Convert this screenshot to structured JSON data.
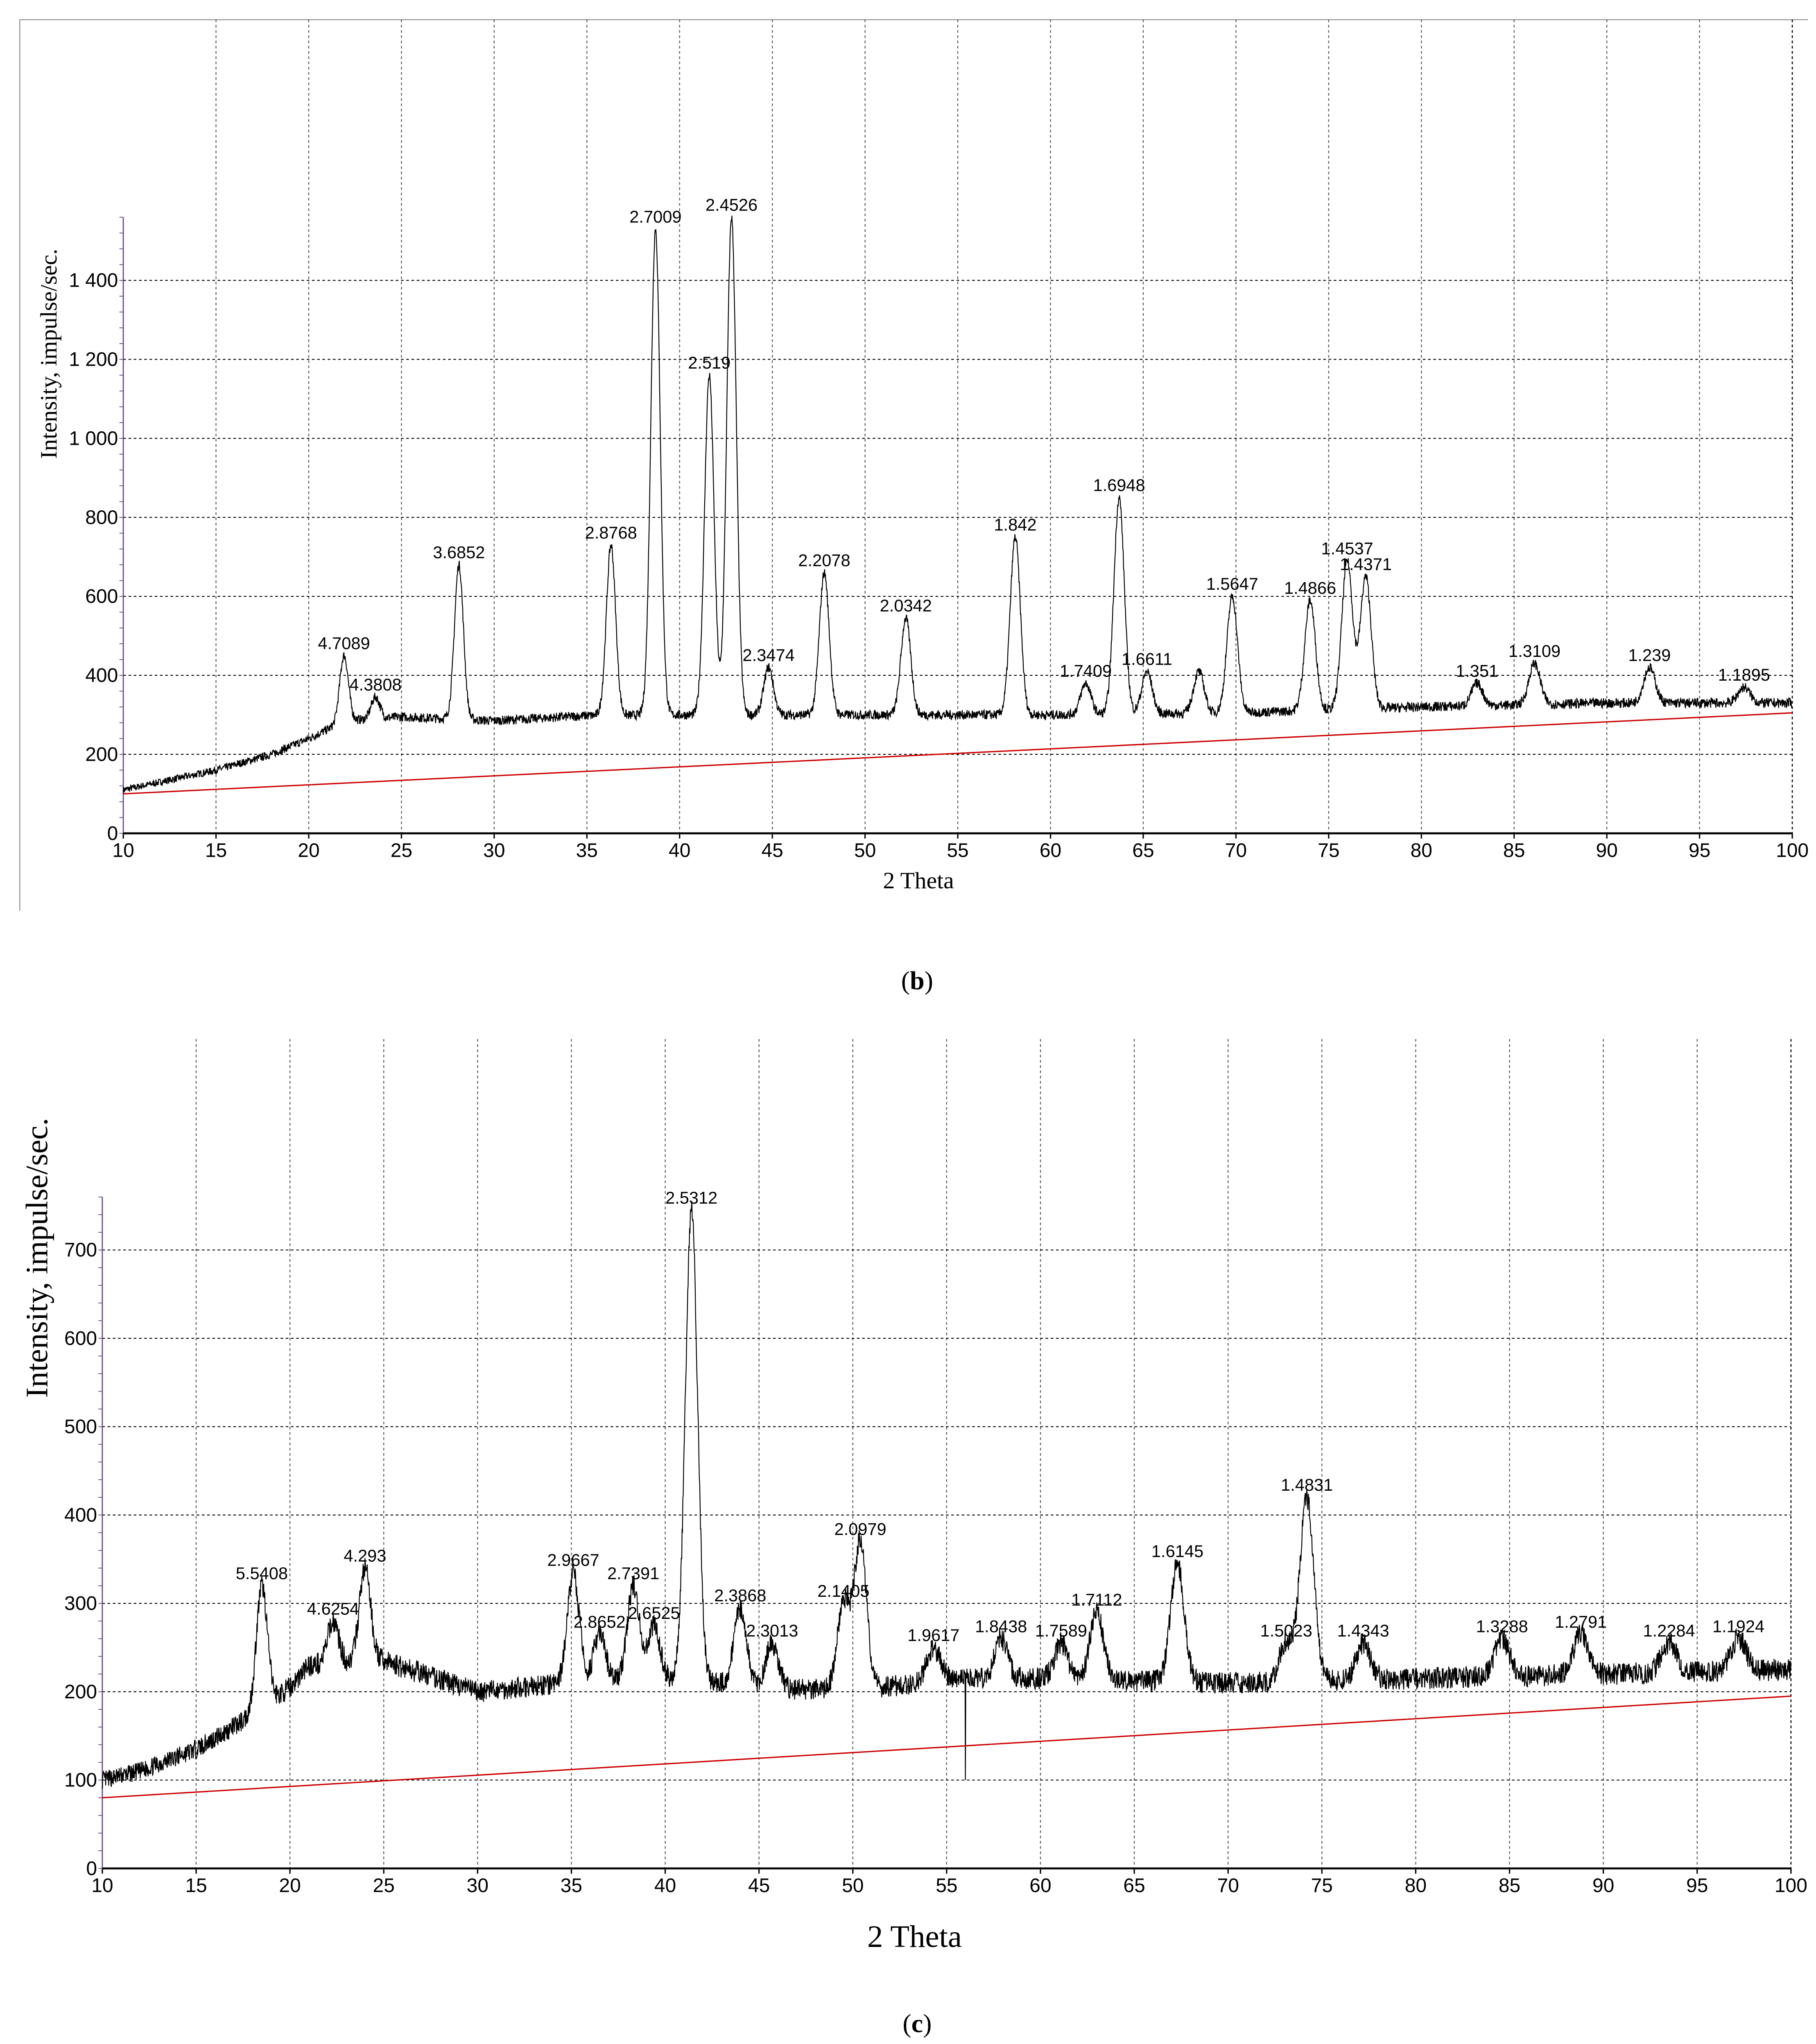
{
  "chart_data": [
    {
      "type": "line",
      "panel_caption": "(b)",
      "caption_letter": "b",
      "xlabel": "2 Theta",
      "ylabel": "Intensity, impulse/sec.",
      "xlim": [
        10,
        100
      ],
      "ylim": [
        0,
        1600
      ],
      "xticks": [
        "10",
        "15",
        "20",
        "25",
        "30",
        "35",
        "40",
        "45",
        "50",
        "55",
        "60",
        "65",
        "70",
        "75",
        "80",
        "85",
        "90",
        "95",
        "100"
      ],
      "yticks": [
        {
          "v": 0,
          "label": "0"
        },
        {
          "v": 200,
          "label": "200"
        },
        {
          "v": 400,
          "label": "400"
        },
        {
          "v": 600,
          "label": "600"
        },
        {
          "v": 800,
          "label": "800"
        },
        {
          "v": 1000,
          "label": "1 000"
        },
        {
          "v": 1200,
          "label": "1 200"
        },
        {
          "v": 1400,
          "label": "1 400"
        }
      ],
      "grid": true,
      "colors": {
        "trace": "#000000",
        "baseline": "#cc0000",
        "grid": "#555555"
      },
      "background_profile": [
        [
          10,
          110
        ],
        [
          13,
          140
        ],
        [
          15,
          160
        ],
        [
          18,
          200
        ],
        [
          20,
          240
        ],
        [
          22,
          285
        ],
        [
          25,
          295
        ],
        [
          30,
          285
        ],
        [
          35,
          298
        ],
        [
          40,
          300
        ],
        [
          50,
          300
        ],
        [
          60,
          300
        ],
        [
          70,
          305
        ],
        [
          80,
          320
        ],
        [
          90,
          330
        ],
        [
          100,
          330
        ]
      ],
      "baseline": [
        [
          10,
          100
        ],
        [
          100,
          305
        ]
      ],
      "peaks": [
        {
          "two_theta": 21.9,
          "intensity": 450,
          "label": "4.7089"
        },
        {
          "two_theta": 23.6,
          "intensity": 345,
          "label": "4.3808"
        },
        {
          "two_theta": 28.1,
          "intensity": 680,
          "label": "3.6852"
        },
        {
          "two_theta": 36.3,
          "intensity": 730,
          "label": "2.8768"
        },
        {
          "two_theta": 38.7,
          "intensity": 1530,
          "label": "2.7009"
        },
        {
          "two_theta": 41.6,
          "intensity": 1160,
          "label": "2.519"
        },
        {
          "two_theta": 42.8,
          "intensity": 1560,
          "label": "2.4526"
        },
        {
          "two_theta": 44.8,
          "intensity": 420,
          "label": "2.3474"
        },
        {
          "two_theta": 47.8,
          "intensity": 660,
          "label": "2.2078"
        },
        {
          "two_theta": 52.2,
          "intensity": 545,
          "label": "2.0342"
        },
        {
          "two_theta": 58.1,
          "intensity": 750,
          "label": "1.842"
        },
        {
          "two_theta": 61.9,
          "intensity": 380,
          "label": "1.7409"
        },
        {
          "two_theta": 63.7,
          "intensity": 850,
          "label": "1.6948"
        },
        {
          "two_theta": 65.2,
          "intensity": 410,
          "label": "1.6611"
        },
        {
          "two_theta": 68.0,
          "intensity": 410,
          "label": ""
        },
        {
          "two_theta": 69.8,
          "intensity": 600,
          "label": "1.5647"
        },
        {
          "two_theta": 74.0,
          "intensity": 590,
          "label": "1.4866"
        },
        {
          "two_theta": 76.0,
          "intensity": 690,
          "label": "1.4537"
        },
        {
          "two_theta": 77.0,
          "intensity": 650,
          "label": "1.4371"
        },
        {
          "two_theta": 83.0,
          "intensity": 380,
          "label": "1.351"
        },
        {
          "two_theta": 86.1,
          "intensity": 430,
          "label": "1.3109"
        },
        {
          "two_theta": 92.3,
          "intensity": 420,
          "label": "1.239"
        },
        {
          "two_theta": 97.4,
          "intensity": 370,
          "label": "1.1895"
        }
      ]
    },
    {
      "type": "line",
      "panel_caption": "(c)",
      "caption_letter": "c",
      "xlabel": "2 Theta",
      "ylabel": "Intensity, impulse/sec.",
      "xlim": [
        10,
        100
      ],
      "ylim": [
        0,
        800
      ],
      "xticks": [
        "10",
        "15",
        "20",
        "25",
        "30",
        "35",
        "40",
        "45",
        "50",
        "55",
        "60",
        "65",
        "70",
        "75",
        "80",
        "85",
        "90",
        "95",
        "100"
      ],
      "yticks": [
        {
          "v": 0,
          "label": "0"
        },
        {
          "v": 100,
          "label": "100"
        },
        {
          "v": 200,
          "label": "200"
        },
        {
          "v": 300,
          "label": "300"
        },
        {
          "v": 400,
          "label": "400"
        },
        {
          "v": 500,
          "label": "500"
        },
        {
          "v": 600,
          "label": "600"
        },
        {
          "v": 700,
          "label": "700"
        }
      ],
      "grid": true,
      "colors": {
        "trace": "#000000",
        "baseline": "#cc0000",
        "grid": "#555555"
      },
      "background_profile": [
        [
          10,
          100
        ],
        [
          12,
          110
        ],
        [
          15,
          135
        ],
        [
          17,
          160
        ],
        [
          18,
          175
        ],
        [
          20,
          205
        ],
        [
          21,
          230
        ],
        [
          25,
          235
        ],
        [
          30,
          200
        ],
        [
          35,
          210
        ],
        [
          40,
          215
        ],
        [
          45,
          205
        ],
        [
          50,
          200
        ],
        [
          55,
          215
        ],
        [
          60,
          215
        ],
        [
          70,
          210
        ],
        [
          80,
          215
        ],
        [
          90,
          220
        ],
        [
          100,
          225
        ]
      ],
      "baseline": [
        [
          10,
          80
        ],
        [
          100,
          195
        ]
      ],
      "peaks": [
        {
          "two_theta": 18.5,
          "intensity": 320,
          "label": "5.5408"
        },
        {
          "two_theta": 22.3,
          "intensity": 280,
          "label": "4.6254"
        },
        {
          "two_theta": 24.0,
          "intensity": 340,
          "label": "4.293"
        },
        {
          "two_theta": 35.1,
          "intensity": 335,
          "label": "2.9667"
        },
        {
          "two_theta": 36.5,
          "intensity": 265,
          "label": "2.8652"
        },
        {
          "two_theta": 38.3,
          "intensity": 320,
          "label": "2.7391"
        },
        {
          "two_theta": 39.4,
          "intensity": 275,
          "label": "2.6525"
        },
        {
          "two_theta": 41.4,
          "intensity": 745,
          "label": "2.5312"
        },
        {
          "two_theta": 44.0,
          "intensity": 295,
          "label": "2.3868"
        },
        {
          "two_theta": 45.7,
          "intensity": 255,
          "label": "2.3013"
        },
        {
          "two_theta": 49.5,
          "intensity": 300,
          "label": "2.1405"
        },
        {
          "two_theta": 50.4,
          "intensity": 370,
          "label": "2.0979"
        },
        {
          "two_theta": 54.3,
          "intensity": 250,
          "label": "1.9617"
        },
        {
          "two_theta": 57.9,
          "intensity": 260,
          "label": "1.8438"
        },
        {
          "two_theta": 61.1,
          "intensity": 255,
          "label": "1.7589"
        },
        {
          "two_theta": 63.0,
          "intensity": 290,
          "label": "1.7112"
        },
        {
          "two_theta": 67.3,
          "intensity": 345,
          "label": "1.6145"
        },
        {
          "two_theta": 73.1,
          "intensity": 255,
          "label": "1.5023"
        },
        {
          "two_theta": 74.2,
          "intensity": 420,
          "label": "1.4831"
        },
        {
          "two_theta": 77.2,
          "intensity": 255,
          "label": "1.4343"
        },
        {
          "two_theta": 84.6,
          "intensity": 260,
          "label": "1.3288"
        },
        {
          "two_theta": 88.8,
          "intensity": 265,
          "label": "1.2791"
        },
        {
          "two_theta": 93.5,
          "intensity": 255,
          "label": "1.2284"
        },
        {
          "two_theta": 97.2,
          "intensity": 260,
          "label": "1.1924"
        }
      ],
      "dips": [
        {
          "two_theta": 56.0,
          "intensity": 100
        }
      ]
    }
  ]
}
